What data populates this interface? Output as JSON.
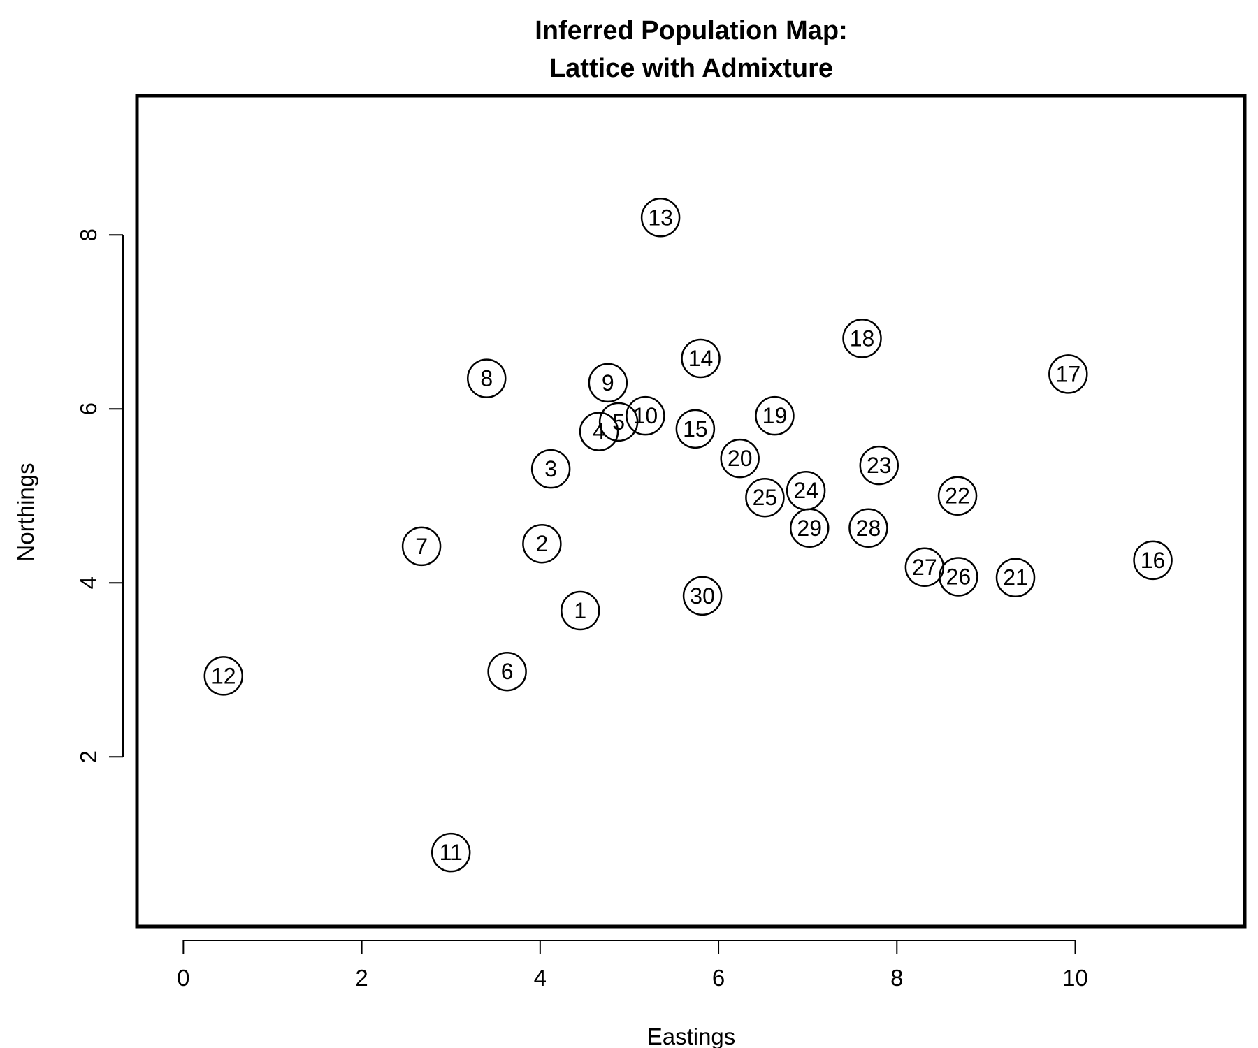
{
  "chart_data": {
    "type": "scatter",
    "title_lines": [
      "Inferred Population Map:",
      "Lattice with Admixture"
    ],
    "xlabel": "Eastings",
    "ylabel": "Northings",
    "xlim": [
      -0.52,
      11.9
    ],
    "ylim": [
      0.05,
      9.6
    ],
    "xticks": [
      0,
      2,
      4,
      6,
      8,
      10
    ],
    "yticks": [
      2,
      4,
      6,
      8
    ],
    "grid": false,
    "legend": "none",
    "points": [
      {
        "label": "1",
        "x": 4.45,
        "y": 3.68
      },
      {
        "label": "2",
        "x": 4.02,
        "y": 4.45
      },
      {
        "label": "3",
        "x": 4.12,
        "y": 5.31
      },
      {
        "label": "4",
        "x": 4.66,
        "y": 5.74
      },
      {
        "label": "5",
        "x": 4.88,
        "y": 5.85
      },
      {
        "label": "6",
        "x": 3.63,
        "y": 2.98
      },
      {
        "label": "7",
        "x": 2.67,
        "y": 4.42
      },
      {
        "label": "8",
        "x": 3.4,
        "y": 6.35
      },
      {
        "label": "9",
        "x": 4.76,
        "y": 6.3
      },
      {
        "label": "10",
        "x": 5.18,
        "y": 5.92
      },
      {
        "label": "11",
        "x": 3.0,
        "y": 0.9
      },
      {
        "label": "12",
        "x": 0.45,
        "y": 2.93
      },
      {
        "label": "13",
        "x": 5.35,
        "y": 8.2
      },
      {
        "label": "14",
        "x": 5.8,
        "y": 6.58
      },
      {
        "label": "15",
        "x": 5.74,
        "y": 5.77
      },
      {
        "label": "16",
        "x": 10.87,
        "y": 4.26
      },
      {
        "label": "17",
        "x": 9.92,
        "y": 6.4
      },
      {
        "label": "18",
        "x": 7.61,
        "y": 6.81
      },
      {
        "label": "19",
        "x": 6.63,
        "y": 5.92
      },
      {
        "label": "20",
        "x": 6.24,
        "y": 5.43
      },
      {
        "label": "21",
        "x": 9.33,
        "y": 4.06
      },
      {
        "label": "22",
        "x": 8.68,
        "y": 5.0
      },
      {
        "label": "23",
        "x": 7.8,
        "y": 5.35
      },
      {
        "label": "24",
        "x": 6.98,
        "y": 5.06
      },
      {
        "label": "25",
        "x": 6.52,
        "y": 4.98
      },
      {
        "label": "26",
        "x": 8.69,
        "y": 4.07
      },
      {
        "label": "27",
        "x": 8.31,
        "y": 4.18
      },
      {
        "label": "28",
        "x": 7.68,
        "y": 4.63
      },
      {
        "label": "29",
        "x": 7.02,
        "y": 4.63
      },
      {
        "label": "30",
        "x": 5.82,
        "y": 3.85
      }
    ]
  }
}
